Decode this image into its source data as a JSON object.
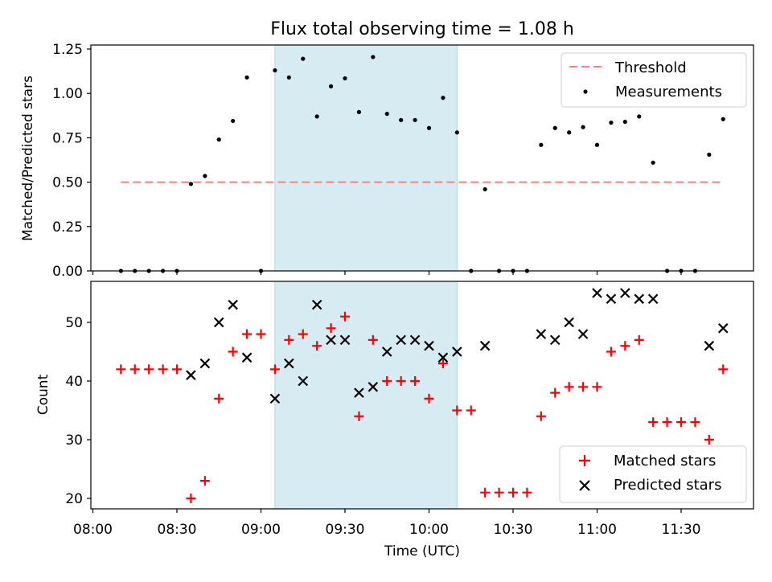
{
  "chart_data": [
    {
      "type": "scatter",
      "title": "Flux total observing time = 1.08 h",
      "ylabel": "Matched/Predicted stars",
      "xlabel": "",
      "ylim": [
        0,
        1.25
      ],
      "yticks": [
        "0.00",
        "0.25",
        "0.50",
        "0.75",
        "1.00",
        "1.25"
      ],
      "legend": {
        "position": "top-right",
        "entries": [
          "Threshold",
          "Measurements"
        ]
      },
      "colors": {
        "threshold": "#ff7f7f",
        "measurements": "#000000",
        "span": "#add8e6"
      },
      "highlight_span": [
        "09:05",
        "10:10"
      ],
      "threshold": {
        "name": "Threshold",
        "y": 0.5,
        "x": [
          "08:10",
          "11:45"
        ]
      },
      "series": [
        {
          "name": "Measurements",
          "x": [
            "08:10",
            "08:15",
            "08:20",
            "08:25",
            "08:30",
            "08:35",
            "08:40",
            "08:45",
            "08:50",
            "08:55",
            "09:00",
            "09:05",
            "09:10",
            "09:15",
            "09:20",
            "09:25",
            "09:30",
            "09:35",
            "09:40",
            "09:45",
            "09:50",
            "09:55",
            "10:00",
            "10:05",
            "10:10",
            "10:15",
            "10:20",
            "10:25",
            "10:30",
            "10:35",
            "10:40",
            "10:45",
            "10:50",
            "10:55",
            "11:00",
            "11:05",
            "11:10",
            "11:15",
            "11:20",
            "11:25",
            "11:30",
            "11:35",
            "11:40",
            "11:45"
          ],
          "y": [
            0,
            0,
            0,
            0,
            0,
            0.49,
            0.535,
            0.74,
            0.845,
            1.09,
            0,
            1.13,
            1.09,
            1.195,
            0.87,
            1.04,
            1.085,
            0.895,
            1.205,
            0.885,
            0.85,
            0.85,
            0.805,
            0.975,
            0.78,
            0,
            0.46,
            0,
            0,
            0,
            0.71,
            0.805,
            0.78,
            0.81,
            0.71,
            0.835,
            0.84,
            0.87,
            0.61,
            0,
            0,
            0,
            0.655,
            0.855
          ]
        }
      ]
    },
    {
      "type": "scatter",
      "title": "",
      "ylabel": "Count",
      "xlabel": "Time (UTC)",
      "ylim": [
        18,
        57
      ],
      "yticks": [
        "20",
        "30",
        "40",
        "50"
      ],
      "xticks": [
        "08:00",
        "08:30",
        "09:00",
        "09:30",
        "10:00",
        "10:30",
        "11:00",
        "11:30"
      ],
      "legend": {
        "position": "bottom-right",
        "entries": [
          "Matched stars",
          "Predicted stars"
        ]
      },
      "colors": {
        "matched": "#ff0000",
        "predicted": "#000000",
        "span": "#add8e6"
      },
      "highlight_span": [
        "09:05",
        "10:10"
      ],
      "series": [
        {
          "name": "Matched stars",
          "marker": "plus",
          "x": [
            "08:10",
            "08:15",
            "08:20",
            "08:25",
            "08:30",
            "08:35",
            "08:40",
            "08:45",
            "08:50",
            "08:55",
            "09:00",
            "09:05",
            "09:10",
            "09:15",
            "09:20",
            "09:25",
            "09:30",
            "09:35",
            "09:40",
            "09:45",
            "09:50",
            "09:55",
            "10:00",
            "10:05",
            "10:10",
            "10:15",
            "10:20",
            "10:25",
            "10:30",
            "10:35",
            "10:40",
            "10:45",
            "10:50",
            "10:55",
            "11:00",
            "11:05",
            "11:10",
            "11:15",
            "11:20",
            "11:25",
            "11:30",
            "11:35",
            "11:40",
            "11:45"
          ],
          "y": [
            42,
            42,
            42,
            42,
            42,
            20,
            23,
            37,
            45,
            48,
            48,
            42,
            47,
            48,
            46,
            49,
            51,
            34,
            47,
            40,
            40,
            40,
            37,
            43,
            35,
            35,
            21,
            21,
            21,
            21,
            34,
            38,
            39,
            39,
            39,
            45,
            46,
            47,
            33,
            33,
            33,
            33,
            30,
            42
          ]
        },
        {
          "name": "Predicted stars",
          "marker": "x",
          "x": [
            "08:35",
            "08:40",
            "08:45",
            "08:50",
            "08:55",
            "09:05",
            "09:10",
            "09:15",
            "09:20",
            "09:25",
            "09:30",
            "09:35",
            "09:40",
            "09:45",
            "09:50",
            "09:55",
            "10:00",
            "10:05",
            "10:10",
            "10:20",
            "10:40",
            "10:45",
            "10:50",
            "10:55",
            "11:00",
            "11:05",
            "11:10",
            "11:15",
            "11:20",
            "11:40",
            "11:45"
          ],
          "y": [
            41,
            43,
            50,
            53,
            44,
            37,
            43,
            40,
            53,
            47,
            47,
            38,
            39,
            45,
            47,
            47,
            46,
            44,
            45,
            46,
            48,
            47,
            50,
            48,
            55,
            54,
            55,
            54,
            54,
            46,
            49
          ]
        }
      ]
    }
  ]
}
